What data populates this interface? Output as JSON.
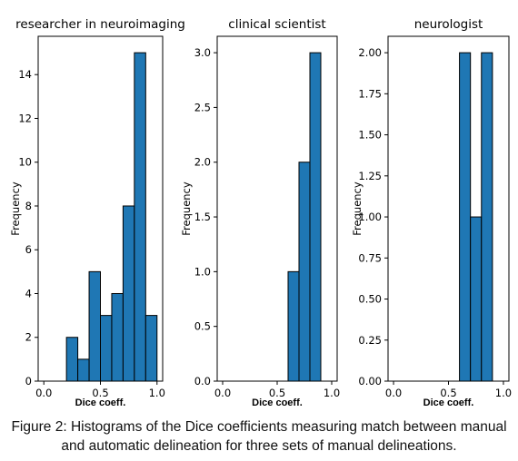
{
  "caption": "Figure 2: Histograms of the Dice coefficients measuring match between manual and automatic delineation for three sets of manual delineations.",
  "colors": {
    "bar_fill": "#1f77b4",
    "bar_edge": "#000000",
    "axis": "#000000"
  },
  "chart_data": [
    {
      "type": "bar",
      "title": "researcher in neuroimaging",
      "xlabel": "Dice coeff.",
      "ylabel": "Frequency",
      "xlim": [
        -0.05,
        1.05
      ],
      "ylim": [
        0,
        15.75
      ],
      "xticks": [
        0.0,
        0.5,
        1.0
      ],
      "xtick_labels": [
        "0.0",
        "0.5",
        "1.0"
      ],
      "yticks": [
        0,
        2,
        4,
        6,
        8,
        10,
        12,
        14
      ],
      "ytick_labels": [
        "0",
        "2",
        "4",
        "6",
        "8",
        "10",
        "12",
        "14"
      ],
      "bins": [
        [
          0.2,
          0.3
        ],
        [
          0.3,
          0.4
        ],
        [
          0.4,
          0.5
        ],
        [
          0.5,
          0.6
        ],
        [
          0.6,
          0.7
        ],
        [
          0.7,
          0.8
        ],
        [
          0.8,
          0.9
        ],
        [
          0.9,
          1.0
        ]
      ],
      "values": [
        2,
        1,
        5,
        3,
        4,
        8,
        15,
        3
      ]
    },
    {
      "type": "bar",
      "title": "clinical scientist",
      "xlabel": "Dice coeff.",
      "ylabel": "Frequency",
      "xlim": [
        -0.05,
        1.05
      ],
      "ylim": [
        0,
        3.15
      ],
      "xticks": [
        0.0,
        0.5,
        1.0
      ],
      "xtick_labels": [
        "0.0",
        "0.5",
        "1.0"
      ],
      "yticks": [
        0.0,
        0.5,
        1.0,
        1.5,
        2.0,
        2.5,
        3.0
      ],
      "ytick_labels": [
        "0.0",
        "0.5",
        "1.0",
        "1.5",
        "2.0",
        "2.5",
        "3.0"
      ],
      "bins": [
        [
          0.6,
          0.7
        ],
        [
          0.7,
          0.8
        ],
        [
          0.8,
          0.9
        ]
      ],
      "values": [
        1,
        2,
        3
      ]
    },
    {
      "type": "bar",
      "title": "neurologist",
      "xlabel": "Dice coeff.",
      "ylabel": "Frequency",
      "xlim": [
        -0.05,
        1.05
      ],
      "ylim": [
        0,
        2.1
      ],
      "xticks": [
        0.0,
        0.5,
        1.0
      ],
      "xtick_labels": [
        "0.0",
        "0.5",
        "1.0"
      ],
      "yticks": [
        0.0,
        0.25,
        0.5,
        0.75,
        1.0,
        1.25,
        1.5,
        1.75,
        2.0
      ],
      "ytick_labels": [
        "0.00",
        "0.25",
        "0.50",
        "0.75",
        "1.00",
        "1.25",
        "1.50",
        "1.75",
        "2.00"
      ],
      "bins": [
        [
          0.6,
          0.7
        ],
        [
          0.7,
          0.8
        ],
        [
          0.8,
          0.9
        ]
      ],
      "values": [
        2,
        1,
        2
      ]
    }
  ]
}
